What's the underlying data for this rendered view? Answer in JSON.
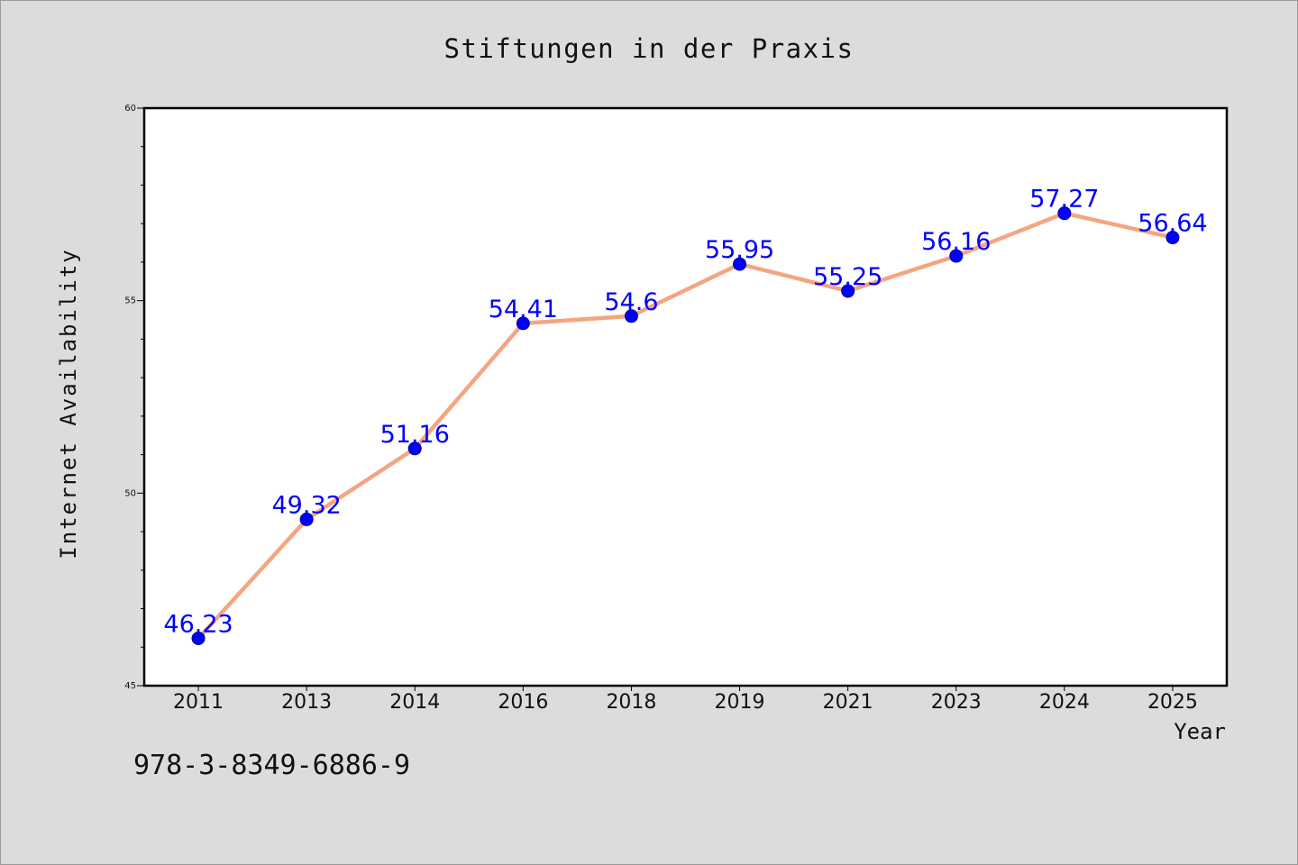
{
  "chart_data": {
    "type": "line",
    "title": "Stiftungen in der Praxis",
    "xlabel": "Year",
    "ylabel": "Internet Availability",
    "categories": [
      "2011",
      "2013",
      "2014",
      "2016",
      "2018",
      "2019",
      "2021",
      "2023",
      "2024",
      "2025"
    ],
    "values": [
      46.23,
      49.32,
      51.16,
      54.41,
      54.6,
      55.95,
      55.25,
      56.16,
      57.27,
      56.64
    ],
    "data_labels": [
      "46.23",
      "49.32",
      "51.16",
      "54.41",
      "54.6",
      "55.95",
      "55.25",
      "56.16",
      "57.27",
      "56.64"
    ],
    "ylim": [
      45,
      60
    ],
    "yticks": [
      45,
      50,
      55,
      60
    ],
    "ytick_labels": [
      "45",
      "50",
      "55",
      "60"
    ],
    "grid": false,
    "legend": "none",
    "colors": {
      "line": "#f4a582",
      "marker": "#0000ff",
      "data_label": "#0000ff",
      "plot_bg": "#ffffff",
      "figure_bg": "#dcdcdc"
    }
  },
  "footer": {
    "isbn": "978-3-8349-6886-9"
  }
}
